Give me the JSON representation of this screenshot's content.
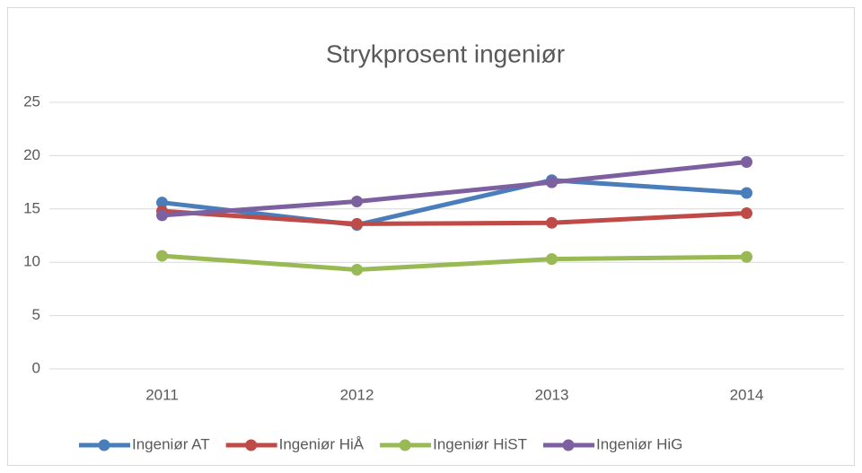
{
  "chart_data": {
    "type": "line",
    "title": "Strykprosent ingeniør",
    "categories": [
      "2011",
      "2012",
      "2013",
      "2014"
    ],
    "series": [
      {
        "name": "Ingeniør AT",
        "color": "#4a7ebb",
        "values": [
          15.6,
          13.5,
          17.7,
          16.5
        ]
      },
      {
        "name": "Ingeniør HiÅ",
        "color": "#be4b48",
        "values": [
          14.8,
          13.6,
          13.7,
          14.6
        ]
      },
      {
        "name": "Ingeniør HiST",
        "color": "#98b954",
        "values": [
          10.6,
          9.3,
          10.3,
          10.5
        ]
      },
      {
        "name": "Ingeniør HiG",
        "color": "#7d60a0",
        "values": [
          14.4,
          15.7,
          17.5,
          19.4
        ]
      }
    ],
    "ylim": [
      0,
      25
    ],
    "yticks": [
      0,
      5,
      10,
      15,
      20,
      25
    ],
    "grid": true,
    "legend": "bottom"
  }
}
